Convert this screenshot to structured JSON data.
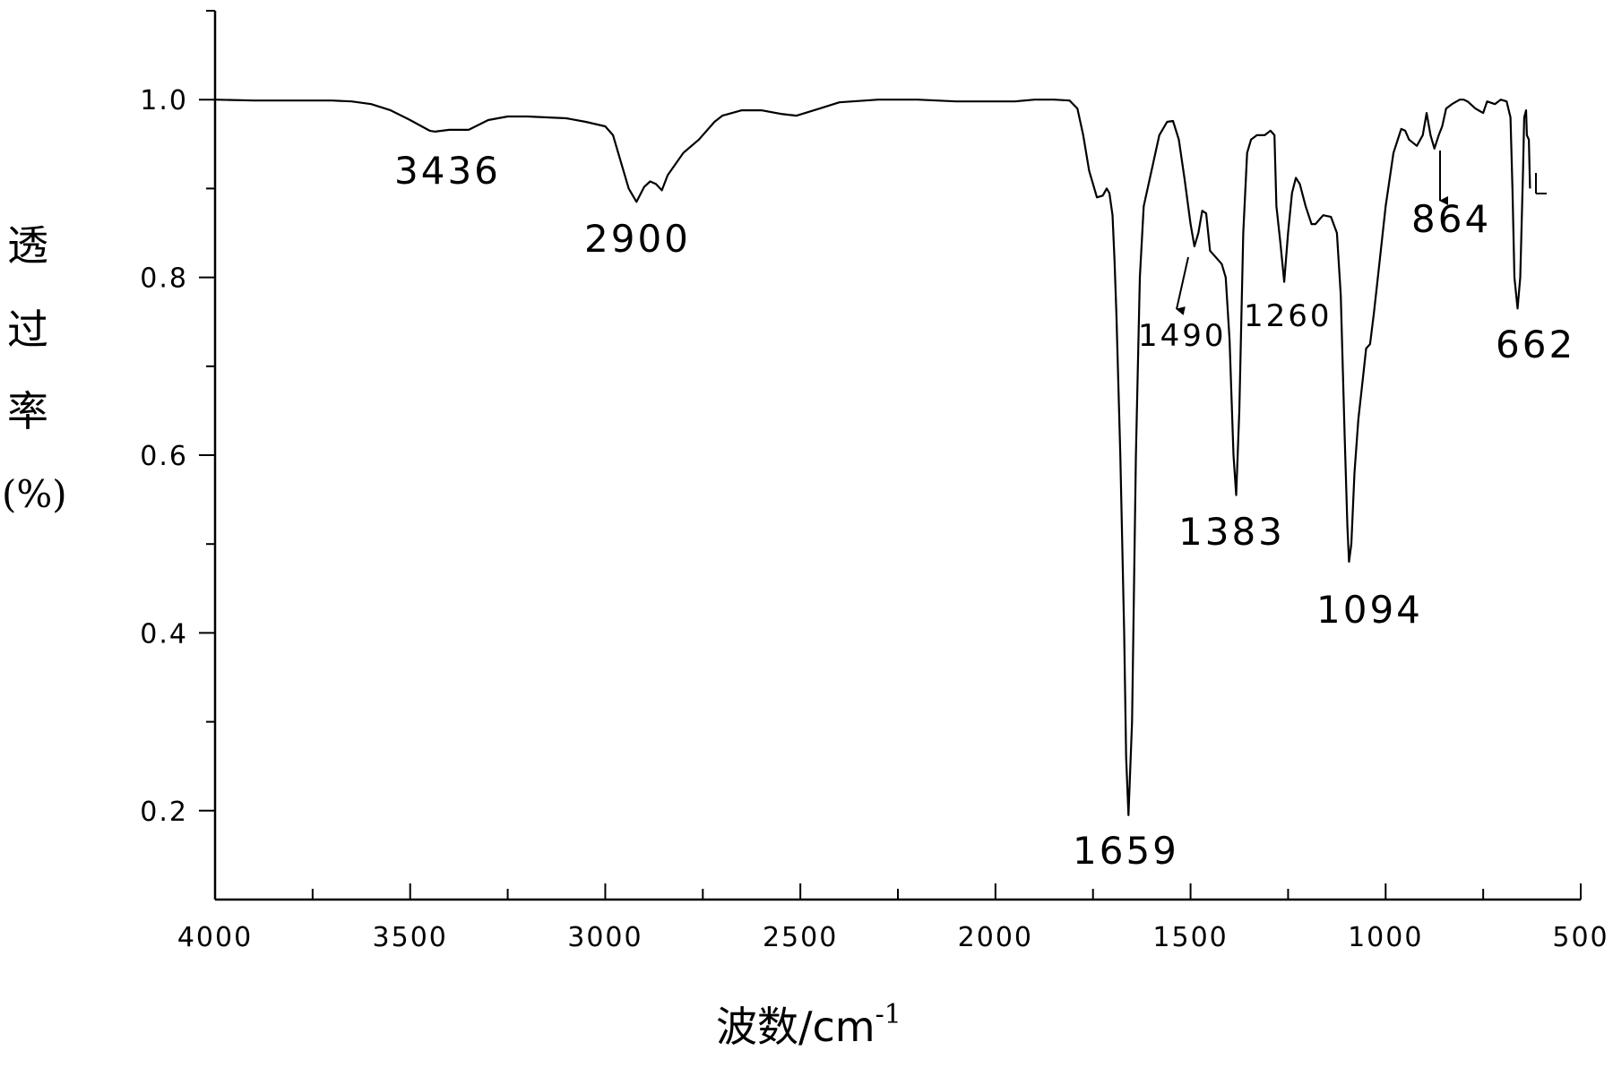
{
  "chart_data": {
    "type": "line",
    "title": "",
    "xlabel": "波数/cm",
    "xlabel_sup": "-1",
    "ylabel_chars": [
      "透",
      "过",
      "率",
      "(%)"
    ],
    "xlim": [
      4000,
      500
    ],
    "ylim": [
      0.1,
      1.1
    ],
    "x_ticks": [
      4000,
      3500,
      3000,
      2500,
      2000,
      1500,
      1000,
      500
    ],
    "x_tick_labels": [
      "4000",
      "3500",
      "3000",
      "2500",
      "2000",
      "1500",
      "1000",
      "500"
    ],
    "y_ticks": [
      0.2,
      0.4,
      0.6,
      0.8,
      1.0
    ],
    "y_tick_labels": [
      "0.2",
      "0.4",
      "0.6",
      "0.8",
      "1.0"
    ],
    "x_minor_step": 250,
    "y_minor_step": 0.1,
    "grid": false,
    "legend": "none",
    "line_color": "#000000",
    "series": [
      {
        "x": [
          4000,
          3900,
          3800,
          3700,
          3650,
          3600,
          3550,
          3500,
          3450,
          3436,
          3400,
          3350,
          3300,
          3250,
          3200,
          3100,
          3050,
          3000,
          2980,
          2960,
          2940,
          2920,
          2900,
          2885,
          2870,
          2855,
          2840,
          2800,
          2760,
          2720,
          2700,
          2650,
          2600,
          2550,
          2510,
          2450,
          2400,
          2300,
          2200,
          2100,
          2000,
          1950,
          1900,
          1850,
          1810,
          1790,
          1775,
          1760,
          1740,
          1725,
          1715,
          1708,
          1700,
          1695,
          1690,
          1680,
          1670,
          1665,
          1659,
          1650,
          1640,
          1630,
          1620,
          1600,
          1580,
          1560,
          1545,
          1530,
          1515,
          1500,
          1490,
          1480,
          1470,
          1460,
          1450,
          1440,
          1430,
          1420,
          1410,
          1400,
          1390,
          1383,
          1375,
          1365,
          1355,
          1345,
          1330,
          1310,
          1295,
          1285,
          1280,
          1270,
          1260,
          1250,
          1240,
          1230,
          1220,
          1205,
          1190,
          1180,
          1160,
          1140,
          1125,
          1115,
          1105,
          1098,
          1094,
          1088,
          1080,
          1070,
          1060,
          1050,
          1040,
          1030,
          1020,
          1000,
          980,
          960,
          950,
          940,
          920,
          905,
          895,
          885,
          875,
          864,
          855,
          845,
          830,
          810,
          800,
          790,
          770,
          750,
          740,
          720,
          705,
          690,
          680,
          675,
          670,
          662,
          655,
          648,
          645,
          640,
          638,
          633,
          630
        ],
        "y": [
          1.0,
          0.999,
          0.999,
          0.999,
          0.998,
          0.995,
          0.988,
          0.977,
          0.965,
          0.964,
          0.966,
          0.966,
          0.977,
          0.981,
          0.981,
          0.979,
          0.975,
          0.97,
          0.96,
          0.93,
          0.9,
          0.885,
          0.902,
          0.908,
          0.905,
          0.898,
          0.915,
          0.94,
          0.955,
          0.975,
          0.982,
          0.988,
          0.988,
          0.984,
          0.982,
          0.99,
          0.997,
          1.0,
          1.0,
          0.998,
          0.998,
          0.998,
          1.0,
          1.0,
          0.999,
          0.99,
          0.96,
          0.92,
          0.89,
          0.892,
          0.9,
          0.895,
          0.87,
          0.82,
          0.76,
          0.6,
          0.4,
          0.26,
          0.195,
          0.3,
          0.6,
          0.8,
          0.88,
          0.92,
          0.96,
          0.975,
          0.976,
          0.955,
          0.91,
          0.86,
          0.835,
          0.85,
          0.875,
          0.872,
          0.83,
          0.825,
          0.82,
          0.815,
          0.8,
          0.73,
          0.6,
          0.555,
          0.65,
          0.85,
          0.94,
          0.955,
          0.96,
          0.96,
          0.965,
          0.96,
          0.88,
          0.84,
          0.795,
          0.85,
          0.895,
          0.912,
          0.905,
          0.88,
          0.86,
          0.86,
          0.87,
          0.868,
          0.85,
          0.78,
          0.62,
          0.52,
          0.48,
          0.5,
          0.58,
          0.64,
          0.68,
          0.72,
          0.725,
          0.76,
          0.8,
          0.88,
          0.94,
          0.967,
          0.965,
          0.955,
          0.948,
          0.96,
          0.985,
          0.96,
          0.945,
          0.96,
          0.97,
          0.99,
          0.995,
          1.0,
          1.0,
          0.998,
          0.99,
          0.985,
          0.998,
          0.995,
          1.0,
          0.998,
          0.98,
          0.9,
          0.8,
          0.765,
          0.8,
          0.92,
          0.98,
          0.988,
          0.96,
          0.955,
          0.9
        ]
      }
    ],
    "annotations": [
      {
        "text": "3436",
        "x": 3436
      },
      {
        "text": "2900",
        "x": 2900
      },
      {
        "text": "1659",
        "x": 1659
      },
      {
        "text": "1490",
        "x": 1490
      },
      {
        "text": "1383",
        "x": 1383
      },
      {
        "text": "1260",
        "x": 1260
      },
      {
        "text": "1094",
        "x": 1094
      },
      {
        "text": "864",
        "x": 864
      },
      {
        "text": "662",
        "x": 662
      }
    ]
  }
}
